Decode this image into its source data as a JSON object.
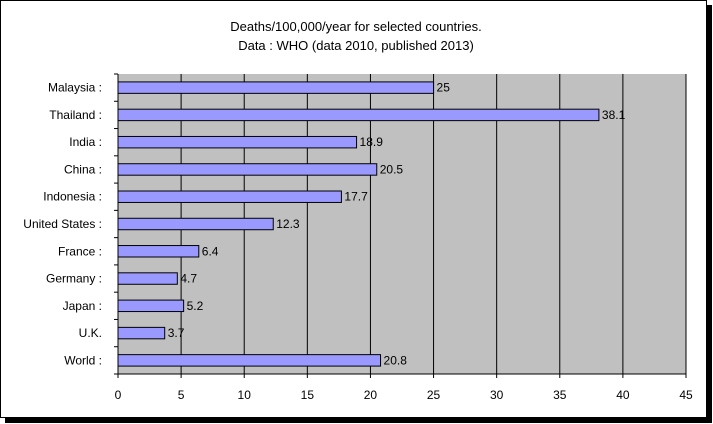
{
  "chart_data": {
    "type": "bar",
    "orientation": "horizontal",
    "title": [
      "Deaths/100,000/year for selected countries.",
      "Data : WHO (data 2010, published 2013)"
    ],
    "categories": [
      "Malaysia :",
      "Thailand :",
      "India :",
      "China :",
      "Indonesia :",
      "United States :",
      "France :",
      "Germany :",
      "Japan :",
      "U.K.",
      "World :"
    ],
    "values": [
      25,
      38.1,
      18.9,
      20.5,
      17.7,
      12.3,
      6.4,
      4.7,
      5.2,
      3.7,
      20.8
    ],
    "data_labels": [
      "25",
      "38.1",
      "18.9",
      "20.5",
      "17.7",
      "12.3",
      "6.4",
      "4.7",
      "5.2",
      "3.7",
      "20.8"
    ],
    "xlim": [
      0,
      45
    ],
    "x_ticks": [
      0,
      5,
      10,
      15,
      20,
      25,
      30,
      35,
      40,
      45
    ],
    "grid": true,
    "legend": "none",
    "colors": {
      "bar_fill": "#9999ff",
      "bar_stroke": "#000000",
      "plot_background": "#c0c0c0",
      "gridline": "#000000"
    }
  }
}
